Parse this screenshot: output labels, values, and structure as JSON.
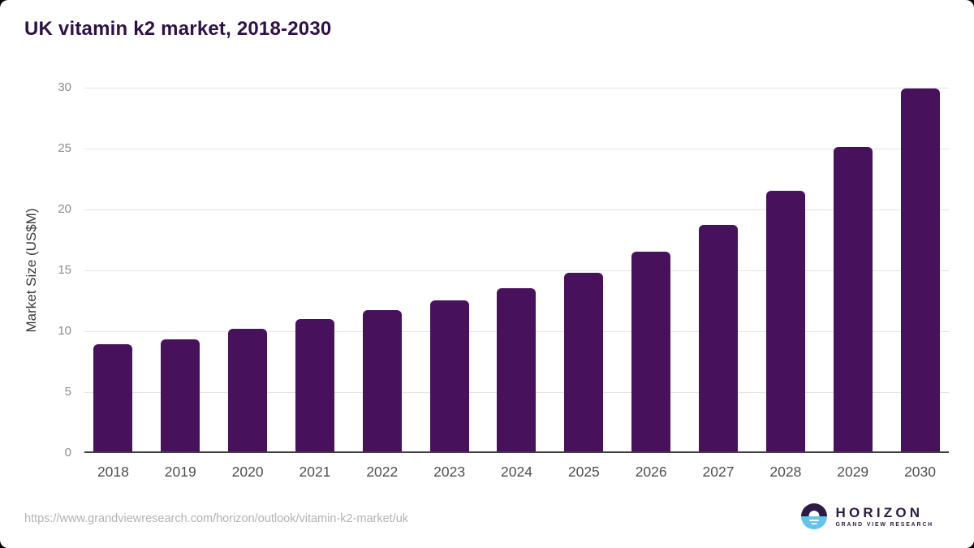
{
  "header": {
    "title": "UK vitamin k2 market, 2018-2030"
  },
  "chart_data": {
    "type": "bar",
    "title": "UK vitamin k2 market, 2018-2030",
    "categories": [
      "2018",
      "2019",
      "2020",
      "2021",
      "2022",
      "2023",
      "2024",
      "2025",
      "2026",
      "2027",
      "2028",
      "2029",
      "2030"
    ],
    "values": [
      8.8,
      9.2,
      10.1,
      10.9,
      11.6,
      12.4,
      13.4,
      14.7,
      16.4,
      18.6,
      21.4,
      25.0,
      29.8
    ],
    "xlabel": "",
    "ylabel": "Market Size (US$M)",
    "ylim": [
      0,
      30
    ],
    "yticks": [
      0,
      5,
      10,
      15,
      20,
      25,
      30
    ],
    "grid": true,
    "legend": false,
    "bar_color": "#48115c"
  },
  "footer": {
    "url": "https://www.grandviewresearch.com/horizon/outlook/vitamin-k2-market/uk",
    "logo": {
      "name": "HORIZON",
      "subtitle": "GRAND VIEW RESEARCH"
    }
  },
  "colors": {
    "bar_purple": "#48115c",
    "title_purple": "#2f1245",
    "logo_purple": "#2d1a47",
    "logo_blue": "#62c4ee",
    "gridline": "#e4e4e4",
    "axis_line": "#3f3f3f"
  }
}
